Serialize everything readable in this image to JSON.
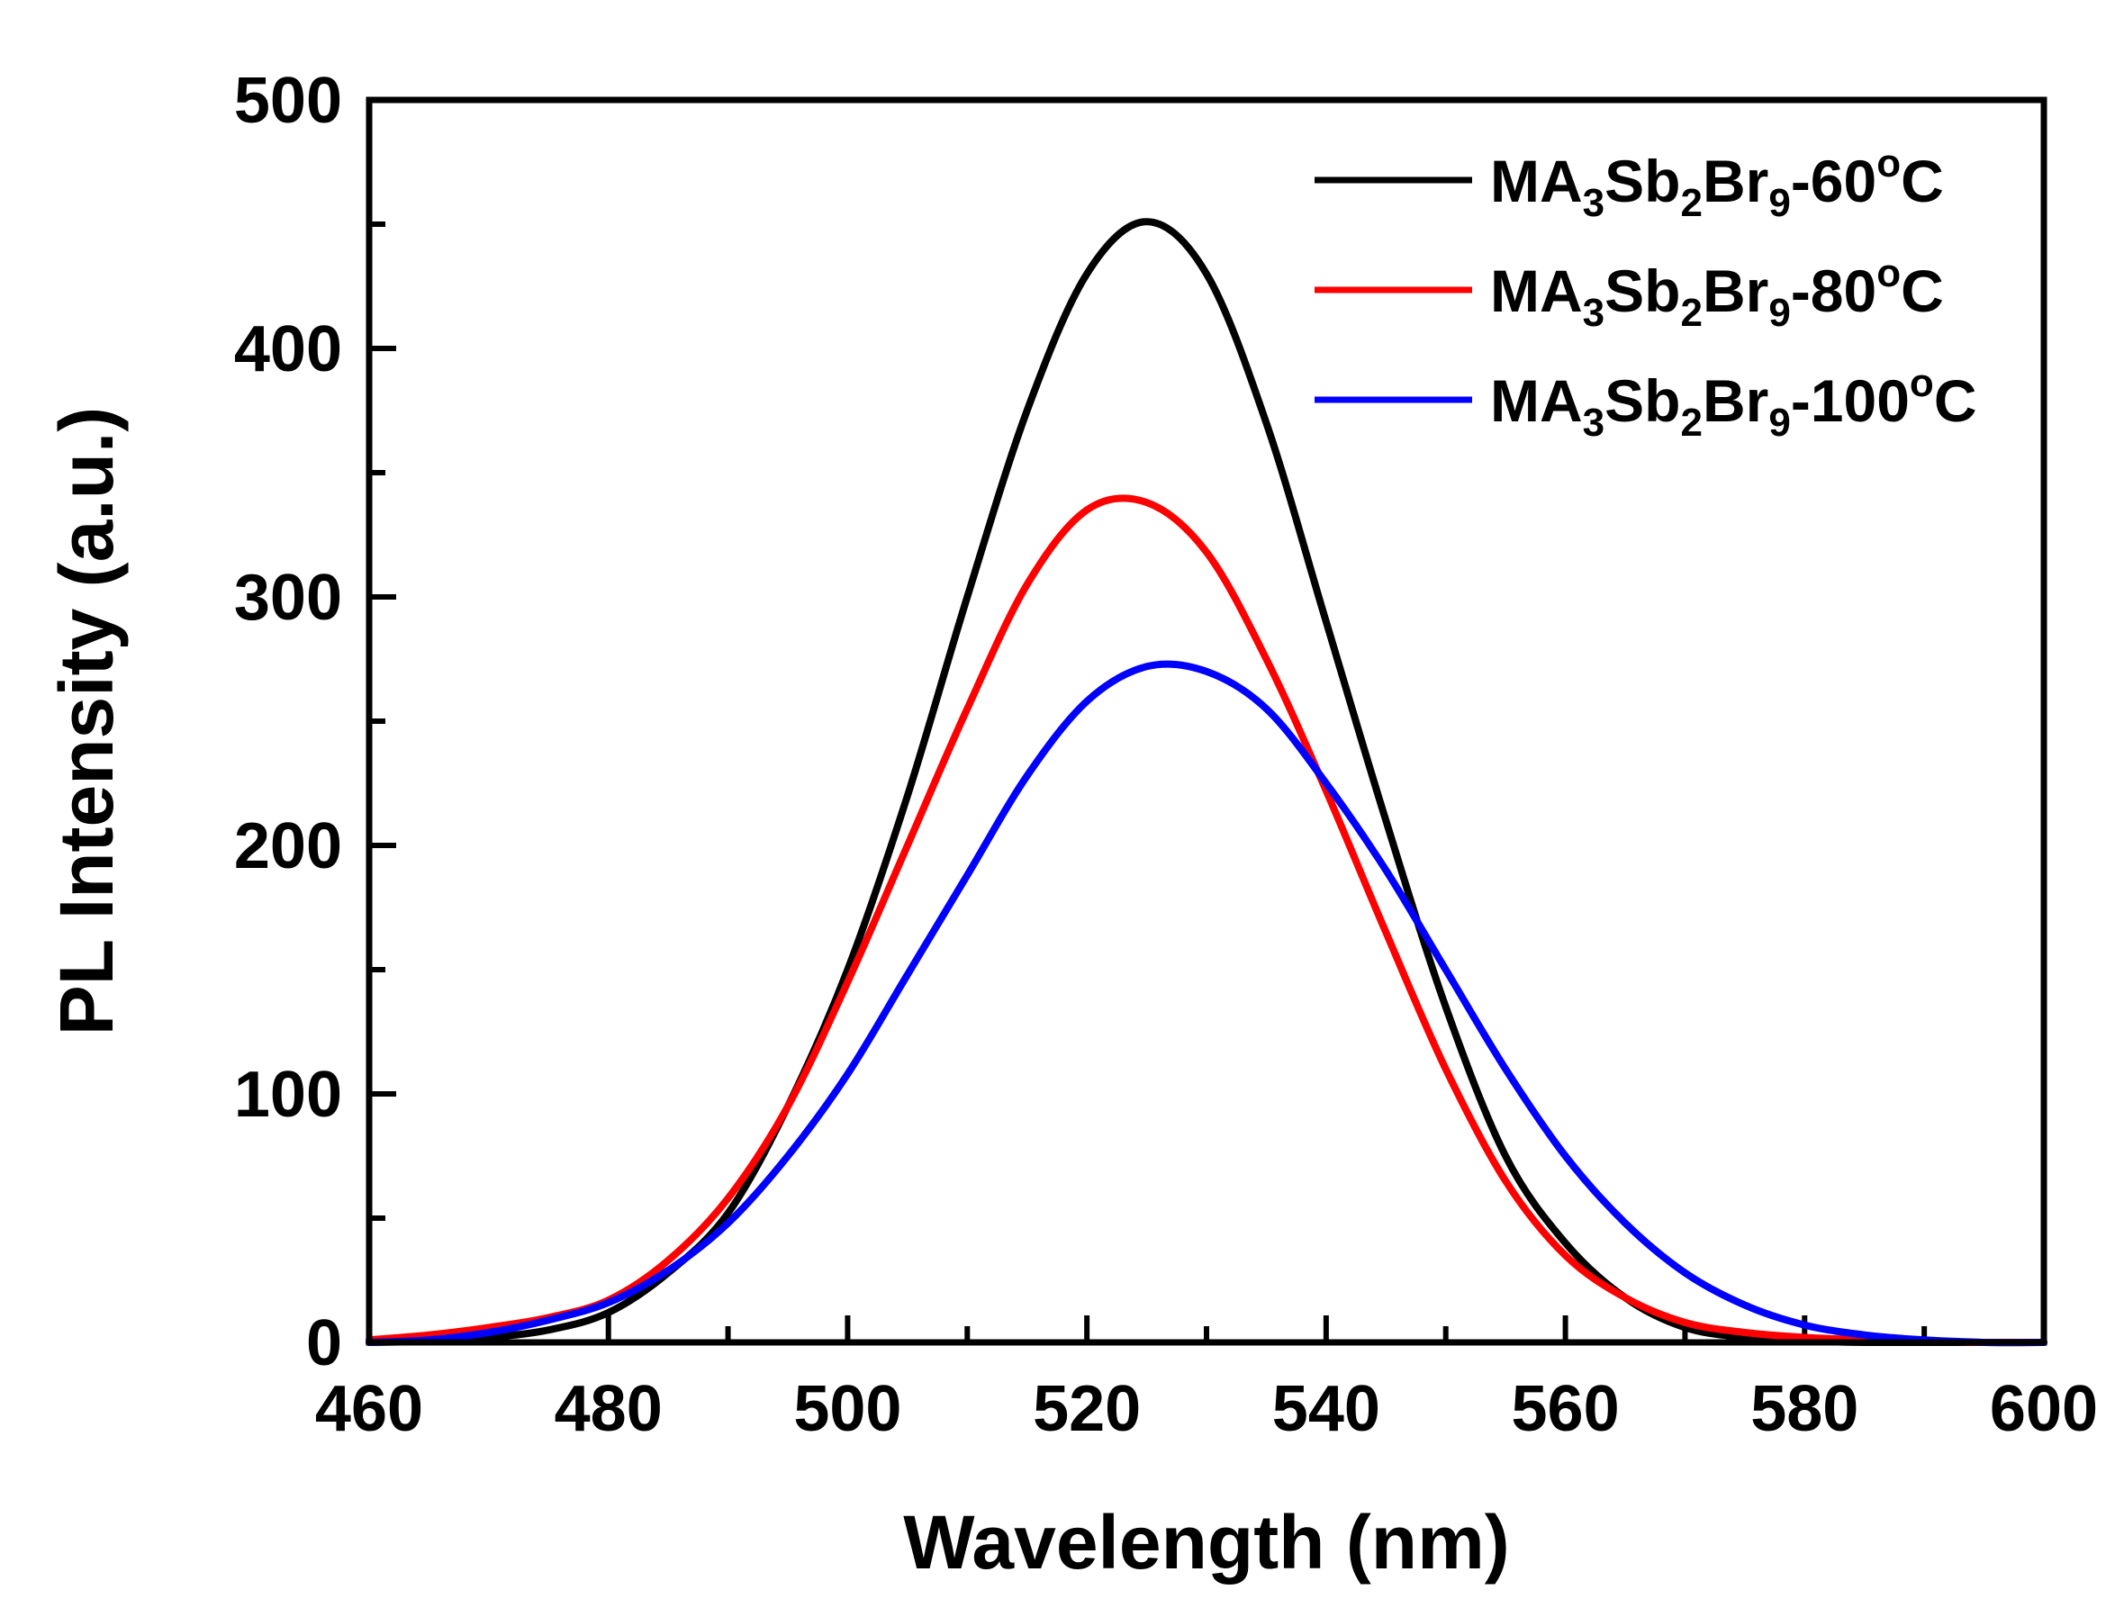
{
  "chart_data": {
    "type": "line",
    "xlabel": "Wavelength (nm)",
    "ylabel": "PL Intensity (a.u.)",
    "xlim": [
      460,
      600
    ],
    "ylim": [
      0,
      500
    ],
    "xticks": [
      460,
      480,
      500,
      520,
      540,
      560,
      580,
      600
    ],
    "yticks": [
      0,
      100,
      200,
      300,
      400,
      500
    ],
    "x_minor_step": 10,
    "y_minor_step": 50,
    "legend_position": "top-right",
    "series": [
      {
        "name": "MA3Sb2Br9-60°C",
        "color": "#000000",
        "label_parts": {
          "a": "MA",
          "s1": "3",
          "b": "Sb",
          "s2": "2",
          "c": "Br",
          "s3": "9",
          "d": "-60",
          "deg": "o",
          "e": "C"
        },
        "x": [
          460,
          465,
          470,
          475,
          480,
          485,
          490,
          495,
          500,
          505,
          510,
          515,
          520,
          525,
          530,
          535,
          540,
          545,
          550,
          555,
          560,
          565,
          570,
          575,
          580,
          585,
          590,
          595,
          600
        ],
        "values": [
          0,
          0.5,
          2,
          5,
          12,
          28,
          52,
          95,
          150,
          220,
          300,
          375,
          430,
          451,
          430,
          370,
          290,
          210,
          135,
          75,
          40,
          18,
          6,
          2,
          0.5,
          0,
          0,
          0,
          0
        ]
      },
      {
        "name": "MA3Sb2Br9-80°C",
        "color": "#ff0000",
        "label_parts": {
          "a": "MA",
          "s1": "3",
          "b": "Sb",
          "s2": "2",
          "c": "Br",
          "s3": "9",
          "d": "-80",
          "deg": "o",
          "e": "C"
        },
        "x": [
          460,
          465,
          470,
          475,
          480,
          485,
          490,
          495,
          500,
          505,
          510,
          515,
          520,
          525,
          530,
          535,
          540,
          545,
          550,
          555,
          560,
          565,
          570,
          575,
          580,
          585,
          590,
          595,
          600
        ],
        "values": [
          1,
          3,
          6,
          10,
          17,
          33,
          58,
          95,
          145,
          200,
          255,
          305,
          335,
          338,
          318,
          275,
          222,
          165,
          110,
          65,
          35,
          18,
          8,
          4,
          2,
          1,
          0.5,
          0,
          0
        ]
      },
      {
        "name": "MA3Sb2Br9-100°C",
        "color": "#0000ff",
        "label_parts": {
          "a": "MA",
          "s1": "3",
          "b": "Sb",
          "s2": "2",
          "c": "Br",
          "s3": "9",
          "d": "-100",
          "deg": "o",
          "e": "C"
        },
        "x": [
          460,
          465,
          470,
          475,
          480,
          485,
          490,
          495,
          500,
          505,
          510,
          515,
          520,
          525,
          530,
          535,
          540,
          545,
          550,
          555,
          560,
          565,
          570,
          575,
          580,
          585,
          590,
          595,
          600
        ],
        "values": [
          0,
          1,
          4,
          9,
          16,
          29,
          48,
          75,
          108,
          148,
          188,
          228,
          258,
          272,
          270,
          255,
          225,
          190,
          150,
          110,
          75,
          48,
          28,
          15,
          7,
          3,
          1,
          0,
          0
        ]
      }
    ]
  }
}
